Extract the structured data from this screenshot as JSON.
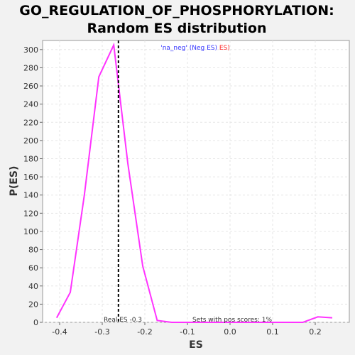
{
  "chart_data": {
    "type": "line",
    "title_line1": "GO_REGULATION_OF_PHOSPHORYLATION:",
    "title_line2": "Random ES distribution",
    "xlabel": "ES",
    "ylabel": "P(ES)",
    "xlim": [
      -0.44,
      0.28
    ],
    "ylim": [
      0,
      310
    ],
    "x_ticks": [
      -0.4,
      -0.3,
      -0.2,
      -0.1,
      0.0,
      0.1,
      0.2
    ],
    "x_tick_labels": [
      "-0.4",
      "-0.3",
      "-0.2",
      "-0.1",
      "0.0",
      "0.1",
      "0.2"
    ],
    "y_ticks": [
      0,
      20,
      40,
      60,
      80,
      100,
      120,
      140,
      160,
      180,
      200,
      220,
      240,
      260,
      280,
      300
    ],
    "y_tick_labels": [
      "0",
      "20",
      "40",
      "60",
      "80",
      "100",
      "120",
      "140",
      "160",
      "180",
      "200",
      "220",
      "240",
      "260",
      "280",
      "300"
    ],
    "grid": true,
    "series": [
      {
        "color": "#ff33ff",
        "x": [
          -0.407,
          -0.375,
          -0.342,
          -0.308,
          -0.273,
          -0.24,
          -0.205,
          -0.171,
          -0.137,
          -0.103,
          -0.069,
          -0.035,
          0.0,
          0.035,
          0.069,
          0.103,
          0.137,
          0.171,
          0.206,
          0.24
        ],
        "y": [
          5,
          33,
          140,
          270,
          305,
          175,
          62,
          2,
          0,
          0,
          0,
          0,
          0,
          0,
          0,
          0,
          0,
          0,
          6,
          5
        ]
      }
    ],
    "real_es": -0.262,
    "real_es_color": "#000000",
    "real_es_label": "Real ES -0.3",
    "pos_label": "Sets with pos scores: 1%",
    "legend": {
      "part1": "'na_neg' (Neg ES)",
      "part1_color": "#3333ff",
      "part2": " ES)",
      "part2_color": "#ff2222",
      "position": "top-center"
    }
  }
}
